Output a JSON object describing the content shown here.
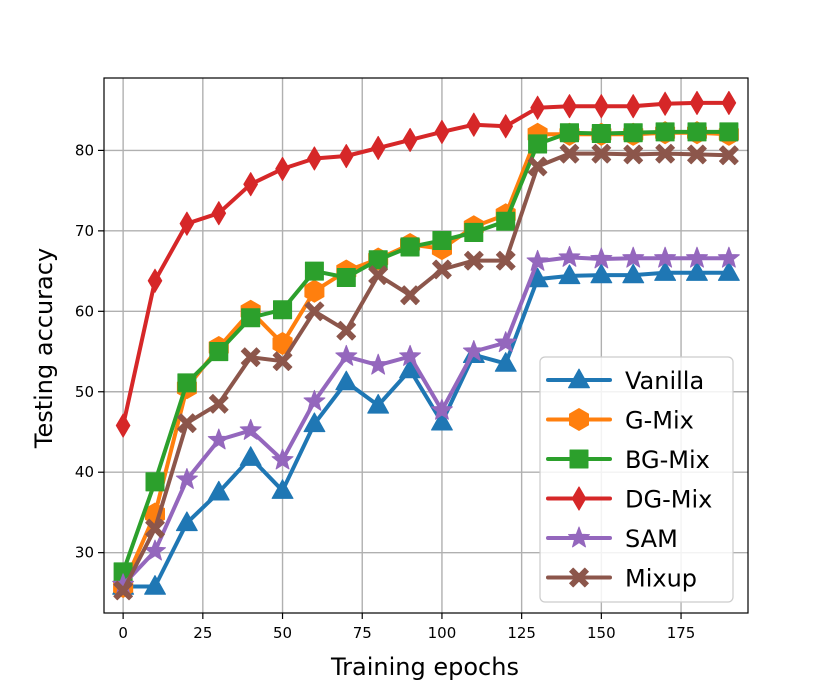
{
  "chart_data": {
    "type": "line",
    "title": "",
    "xlabel": "Training epochs",
    "ylabel": "Testing accuracy",
    "xlim": [
      -6,
      196
    ],
    "ylim": [
      22.5,
      89
    ],
    "xticks": [
      0,
      25,
      50,
      75,
      100,
      125,
      150,
      175
    ],
    "yticks": [
      30,
      40,
      50,
      60,
      70,
      80
    ],
    "grid": true,
    "legend_position": "lower-right",
    "x": [
      0,
      10,
      20,
      30,
      40,
      50,
      60,
      70,
      80,
      90,
      100,
      110,
      120,
      130,
      140,
      150,
      160,
      170,
      180,
      190
    ],
    "series": [
      {
        "name": "Vanilla",
        "color": "#1f77b4",
        "marker": "triangle",
        "values": [
          25.8,
          25.8,
          33.7,
          37.5,
          41.8,
          37.7,
          46.0,
          51.2,
          48.3,
          52.7,
          46.2,
          54.6,
          53.5,
          64.0,
          64.4,
          64.5,
          64.5,
          64.8,
          64.8,
          64.8
        ]
      },
      {
        "name": "G-Mix",
        "color": "#ff7f0e",
        "marker": "hexagon",
        "values": [
          25.8,
          34.8,
          50.5,
          55.5,
          60.0,
          56.0,
          62.5,
          65.0,
          66.5,
          68.3,
          67.8,
          70.5,
          72.0,
          82.0,
          82.0,
          82.0,
          82.0,
          82.2,
          82.2,
          82.0
        ]
      },
      {
        "name": "BG-Mix",
        "color": "#2ca02c",
        "marker": "square",
        "values": [
          27.6,
          38.8,
          51.1,
          55.0,
          59.2,
          60.2,
          65.0,
          64.2,
          66.4,
          68.0,
          68.8,
          69.8,
          71.2,
          80.8,
          82.2,
          82.1,
          82.2,
          82.3,
          82.3,
          82.3
        ]
      },
      {
        "name": "DG-Mix",
        "color": "#d62728",
        "marker": "diamond",
        "values": [
          45.8,
          63.8,
          70.9,
          72.2,
          75.8,
          77.7,
          79.0,
          79.3,
          80.3,
          81.3,
          82.3,
          83.2,
          83.0,
          85.3,
          85.5,
          85.5,
          85.5,
          85.8,
          85.9,
          85.9
        ]
      },
      {
        "name": "SAM",
        "color": "#9467bd",
        "marker": "star",
        "values": [
          26.0,
          30.2,
          39.1,
          44.0,
          45.2,
          41.5,
          48.8,
          54.4,
          53.3,
          54.4,
          47.7,
          55.0,
          56.1,
          66.2,
          66.7,
          66.5,
          66.6,
          66.6,
          66.6,
          66.6
        ]
      },
      {
        "name": "Mixup",
        "color": "#8c564b",
        "marker": "x",
        "values": [
          25.3,
          33.0,
          46.1,
          48.5,
          54.3,
          53.8,
          60.0,
          57.6,
          64.5,
          62.0,
          65.2,
          66.3,
          66.3,
          78.0,
          79.6,
          79.6,
          79.5,
          79.6,
          79.5,
          79.4
        ]
      }
    ]
  }
}
